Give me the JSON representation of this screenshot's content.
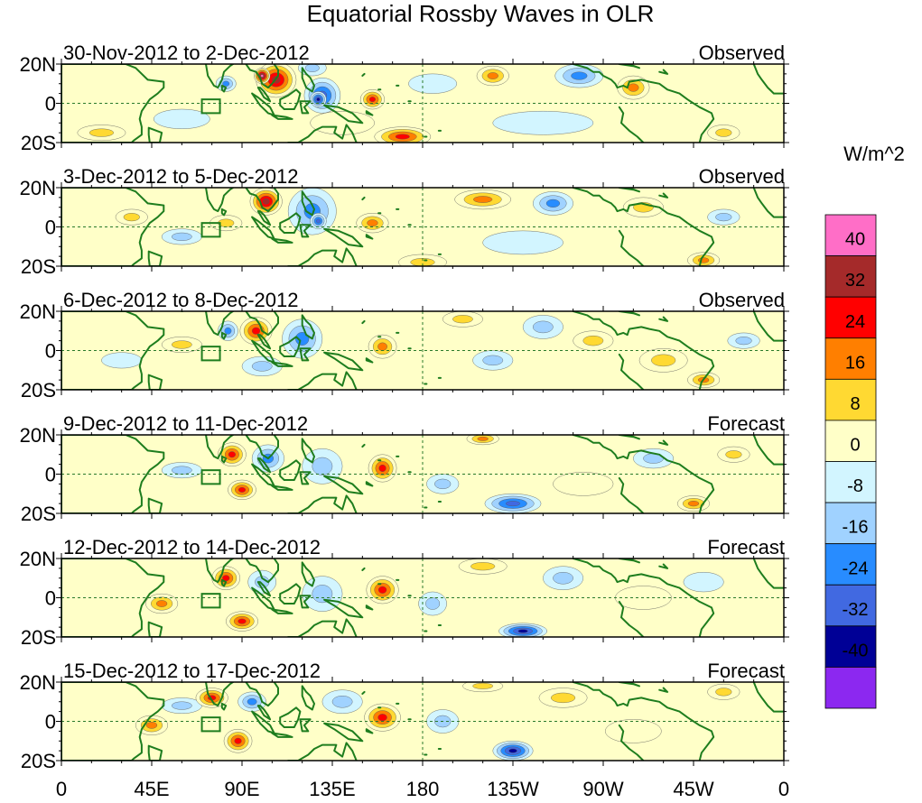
{
  "chart_data": {
    "type": "heatmap",
    "title": "Equatorial Rossby Waves in OLR",
    "colorbar": {
      "unit": "W/m^2",
      "tick_labels": [
        "40",
        "32",
        "24",
        "16",
        "8",
        "0",
        "-8",
        "-16",
        "-24",
        "-32",
        "-40"
      ],
      "bin_colors_top_to_bottom": [
        "#ff6ec7",
        "#a52a2a",
        "#ff0000",
        "#ff7f00",
        "#ffd932",
        "#ffffc8",
        "#d2f5ff",
        "#a0d2ff",
        "#288cff",
        "#4169e1",
        "#000096",
        "#8c28f0"
      ]
    },
    "x_ticks": [
      {
        "lon": 0,
        "label": "0"
      },
      {
        "lon": 45,
        "label": "45E"
      },
      {
        "lon": 90,
        "label": "90E"
      },
      {
        "lon": 135,
        "label": "135E"
      },
      {
        "lon": 180,
        "label": "180"
      },
      {
        "lon": 225,
        "label": "135W"
      },
      {
        "lon": 270,
        "label": "90W"
      },
      {
        "lon": 315,
        "label": "45W"
      },
      {
        "lon": 360,
        "label": "0"
      }
    ],
    "y_ticks": [
      {
        "lat": 20,
        "label": "20N"
      },
      {
        "lat": 0,
        "label": "0"
      },
      {
        "lat": -20,
        "label": "20S"
      }
    ],
    "x_range": [
      0,
      360
    ],
    "y_range": [
      -20,
      20
    ],
    "reference_lines": {
      "equator_lat": 0,
      "dateline_lon": 180
    },
    "box_outline": {
      "lon": [
        70,
        79
      ],
      "lat": [
        -5,
        2
      ]
    },
    "panels": [
      {
        "date_range": "30-Nov-2012 to 2-Dec-2012",
        "status": "Observed",
        "anomalies": [
          {
            "lon": 107,
            "lat": 12,
            "rlon": 10,
            "rlat": 9,
            "value": 36
          },
          {
            "lon": 100,
            "lat": 14,
            "rlon": 4,
            "rlat": 4,
            "value": 44
          },
          {
            "lon": 130,
            "lat": 4,
            "rlon": 9,
            "rlat": 9,
            "value": -30
          },
          {
            "lon": 128,
            "lat": 2,
            "rlon": 4,
            "rlat": 4,
            "value": -38
          },
          {
            "lon": 155,
            "lat": 2,
            "rlon": 6,
            "rlat": 5,
            "value": 26
          },
          {
            "lon": 125,
            "lat": 18,
            "rlon": 7,
            "rlat": 4,
            "value": -12
          },
          {
            "lon": 170,
            "lat": -17,
            "rlon": 14,
            "rlat": 5,
            "value": 26
          },
          {
            "lon": 140,
            "lat": -10,
            "rlon": 16,
            "rlat": 6,
            "value": 8
          },
          {
            "lon": 215,
            "lat": 14,
            "rlon": 8,
            "rlat": 5,
            "value": 18
          },
          {
            "lon": 258,
            "lat": 14,
            "rlon": 12,
            "rlat": 6,
            "value": -18
          },
          {
            "lon": 285,
            "lat": 8,
            "rlon": 8,
            "rlat": 6,
            "value": 20
          },
          {
            "lon": 82,
            "lat": 10,
            "rlon": 5,
            "rlat": 4,
            "value": -20
          },
          {
            "lon": 20,
            "lat": -15,
            "rlon": 12,
            "rlat": 4,
            "value": 12
          },
          {
            "lon": 60,
            "lat": -8,
            "rlon": 14,
            "rlat": 5,
            "value": -8
          },
          {
            "lon": 330,
            "lat": -15,
            "rlon": 8,
            "rlat": 4,
            "value": 16
          },
          {
            "lon": 240,
            "lat": -10,
            "rlon": 25,
            "rlat": 6,
            "value": -6
          },
          {
            "lon": 185,
            "lat": 10,
            "rlon": 12,
            "rlat": 5,
            "value": -8
          }
        ]
      },
      {
        "date_range": "3-Dec-2012 to 5-Dec-2012",
        "status": "Observed",
        "anomalies": [
          {
            "lon": 102,
            "lat": 13,
            "rlon": 8,
            "rlat": 7,
            "value": 34
          },
          {
            "lon": 125,
            "lat": 8,
            "rlon": 12,
            "rlat": 12,
            "value": -24
          },
          {
            "lon": 128,
            "lat": 3,
            "rlon": 4,
            "rlat": 4,
            "value": -30
          },
          {
            "lon": 155,
            "lat": 2,
            "rlon": 8,
            "rlat": 5,
            "value": 18
          },
          {
            "lon": 210,
            "lat": 14,
            "rlon": 14,
            "rlat": 5,
            "value": 18
          },
          {
            "lon": 245,
            "lat": 12,
            "rlon": 10,
            "rlat": 6,
            "value": -18
          },
          {
            "lon": 180,
            "lat": -18,
            "rlon": 12,
            "rlat": 4,
            "value": 16
          },
          {
            "lon": 82,
            "lat": 2,
            "rlon": 8,
            "rlat": 4,
            "value": 14
          },
          {
            "lon": 60,
            "lat": -5,
            "rlon": 10,
            "rlat": 4,
            "value": -14
          },
          {
            "lon": 35,
            "lat": 5,
            "rlon": 8,
            "rlat": 4,
            "value": 12
          },
          {
            "lon": 320,
            "lat": -17,
            "rlon": 8,
            "rlat": 4,
            "value": 22
          },
          {
            "lon": 330,
            "lat": 5,
            "rlon": 8,
            "rlat": 4,
            "value": -14
          },
          {
            "lon": 290,
            "lat": 10,
            "rlon": 10,
            "rlat": 5,
            "value": 10
          },
          {
            "lon": 230,
            "lat": -8,
            "rlon": 20,
            "rlat": 6,
            "value": -6
          }
        ]
      },
      {
        "date_range": "6-Dec-2012 to 8-Dec-2012",
        "status": "Observed",
        "anomalies": [
          {
            "lon": 97,
            "lat": 10,
            "rlon": 8,
            "rlat": 7,
            "value": 30
          },
          {
            "lon": 83,
            "lat": 10,
            "rlon": 5,
            "rlat": 5,
            "value": -20
          },
          {
            "lon": 120,
            "lat": 6,
            "rlon": 10,
            "rlat": 10,
            "value": -18
          },
          {
            "lon": 100,
            "lat": -8,
            "rlon": 10,
            "rlat": 5,
            "value": -14
          },
          {
            "lon": 160,
            "lat": 2,
            "rlon": 7,
            "rlat": 6,
            "value": 18
          },
          {
            "lon": 200,
            "lat": 16,
            "rlon": 10,
            "rlat": 4,
            "value": 12
          },
          {
            "lon": 240,
            "lat": 12,
            "rlon": 10,
            "rlat": 6,
            "value": -16
          },
          {
            "lon": 215,
            "lat": -5,
            "rlon": 10,
            "rlat": 5,
            "value": -14
          },
          {
            "lon": 265,
            "lat": 5,
            "rlon": 10,
            "rlat": 5,
            "value": 14
          },
          {
            "lon": 300,
            "lat": -5,
            "rlon": 12,
            "rlat": 6,
            "value": 10
          },
          {
            "lon": 320,
            "lat": -15,
            "rlon": 8,
            "rlat": 4,
            "value": 22
          },
          {
            "lon": 340,
            "lat": 5,
            "rlon": 8,
            "rlat": 4,
            "value": -12
          },
          {
            "lon": 60,
            "lat": 3,
            "rlon": 10,
            "rlat": 4,
            "value": 10
          },
          {
            "lon": 30,
            "lat": -5,
            "rlon": 10,
            "rlat": 4,
            "value": -8
          }
        ]
      },
      {
        "date_range": "9-Dec-2012 to 11-Dec-2012",
        "status": "Forecast",
        "anomalies": [
          {
            "lon": 85,
            "lat": 10,
            "rlon": 7,
            "rlat": 6,
            "value": 28
          },
          {
            "lon": 103,
            "lat": 8,
            "rlon": 8,
            "rlat": 7,
            "value": -20
          },
          {
            "lon": 90,
            "lat": -8,
            "rlon": 7,
            "rlat": 5,
            "value": 26
          },
          {
            "lon": 160,
            "lat": 3,
            "rlon": 7,
            "rlat": 7,
            "value": 30
          },
          {
            "lon": 130,
            "lat": 4,
            "rlon": 10,
            "rlat": 9,
            "value": -14
          },
          {
            "lon": 210,
            "lat": 18,
            "rlon": 8,
            "rlat": 3,
            "value": 18
          },
          {
            "lon": 225,
            "lat": -15,
            "rlon": 14,
            "rlat": 5,
            "value": -26
          },
          {
            "lon": 190,
            "lat": -5,
            "rlon": 8,
            "rlat": 5,
            "value": -12
          },
          {
            "lon": 60,
            "lat": 2,
            "rlon": 10,
            "rlat": 4,
            "value": -12
          },
          {
            "lon": 315,
            "lat": -15,
            "rlon": 8,
            "rlat": 4,
            "value": 18
          },
          {
            "lon": 295,
            "lat": 8,
            "rlon": 10,
            "rlat": 5,
            "value": -12
          },
          {
            "lon": 335,
            "lat": 10,
            "rlon": 8,
            "rlat": 4,
            "value": 10
          },
          {
            "lon": 260,
            "lat": -5,
            "rlon": 15,
            "rlat": 6,
            "value": 8
          }
        ]
      },
      {
        "date_range": "12-Dec-2012 to 14-Dec-2012",
        "status": "Forecast",
        "anomalies": [
          {
            "lon": 82,
            "lat": 10,
            "rlon": 7,
            "rlat": 6,
            "value": 28
          },
          {
            "lon": 100,
            "lat": 8,
            "rlon": 7,
            "rlat": 6,
            "value": -16
          },
          {
            "lon": 90,
            "lat": -12,
            "rlon": 8,
            "rlat": 5,
            "value": 28
          },
          {
            "lon": 50,
            "lat": -3,
            "rlon": 8,
            "rlat": 5,
            "value": 18
          },
          {
            "lon": 160,
            "lat": 4,
            "rlon": 8,
            "rlat": 7,
            "value": 28
          },
          {
            "lon": 130,
            "lat": 2,
            "rlon": 10,
            "rlat": 9,
            "value": -14
          },
          {
            "lon": 230,
            "lat": -17,
            "rlon": 12,
            "rlat": 4,
            "value": -34
          },
          {
            "lon": 185,
            "lat": -3,
            "rlon": 7,
            "rlat": 6,
            "value": -14
          },
          {
            "lon": 210,
            "lat": 16,
            "rlon": 12,
            "rlat": 4,
            "value": 10
          },
          {
            "lon": 250,
            "lat": 10,
            "rlon": 10,
            "rlat": 6,
            "value": -12
          },
          {
            "lon": 290,
            "lat": 0,
            "rlon": 14,
            "rlat": 6,
            "value": 8
          },
          {
            "lon": 320,
            "lat": 8,
            "rlon": 10,
            "rlat": 5,
            "value": -8
          }
        ]
      },
      {
        "date_range": "15-Dec-2012 to 17-Dec-2012",
        "status": "Forecast",
        "anomalies": [
          {
            "lon": 75,
            "lat": 12,
            "rlon": 8,
            "rlat": 5,
            "value": 28
          },
          {
            "lon": 95,
            "lat": 10,
            "rlon": 7,
            "rlat": 5,
            "value": -18
          },
          {
            "lon": 88,
            "lat": -10,
            "rlon": 7,
            "rlat": 6,
            "value": 28
          },
          {
            "lon": 45,
            "lat": -2,
            "rlon": 8,
            "rlat": 5,
            "value": 22
          },
          {
            "lon": 160,
            "lat": 2,
            "rlon": 9,
            "rlat": 7,
            "value": 30
          },
          {
            "lon": 140,
            "lat": 10,
            "rlon": 10,
            "rlat": 6,
            "value": -14
          },
          {
            "lon": 225,
            "lat": -15,
            "rlon": 10,
            "rlat": 5,
            "value": -36
          },
          {
            "lon": 190,
            "lat": 0,
            "rlon": 8,
            "rlat": 6,
            "value": -16
          },
          {
            "lon": 210,
            "lat": 18,
            "rlon": 10,
            "rlat": 3,
            "value": 14
          },
          {
            "lon": 250,
            "lat": 12,
            "rlon": 12,
            "rlat": 5,
            "value": 12
          },
          {
            "lon": 330,
            "lat": 15,
            "rlon": 8,
            "rlat": 4,
            "value": 14
          },
          {
            "lon": 285,
            "lat": -5,
            "rlon": 14,
            "rlat": 6,
            "value": 8
          },
          {
            "lon": 60,
            "lat": 8,
            "rlon": 10,
            "rlat": 4,
            "value": -10
          }
        ]
      }
    ]
  }
}
